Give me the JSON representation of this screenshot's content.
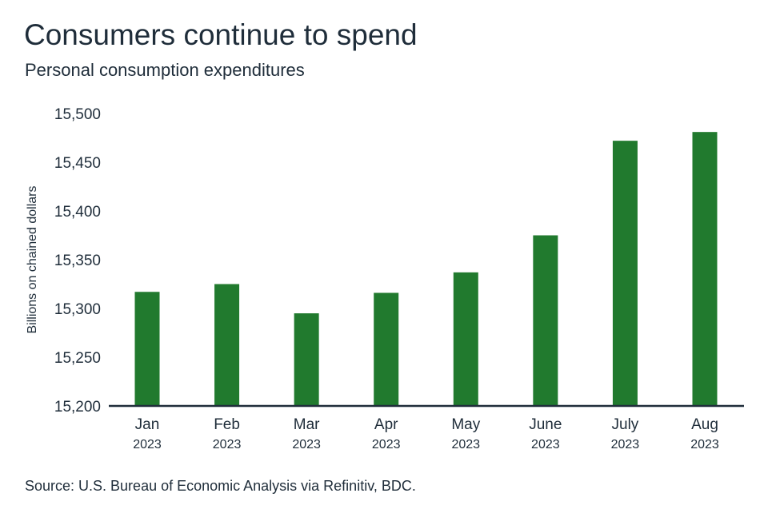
{
  "header": {
    "title": "Consumers continue to spend",
    "subtitle": "Personal consumption expenditures"
  },
  "footer": {
    "source": "Source: U.S. Bureau of Economic Analysis via Refinitiv, BDC."
  },
  "colors": {
    "bar": "#217a2e",
    "axis": "#1f2d3a",
    "text": "#1f2d3a"
  },
  "chart_data": {
    "type": "bar",
    "title": "Consumers continue to spend",
    "subtitle": "Personal consumption expenditures",
    "categories": [
      "Jan",
      "Feb",
      "Mar",
      "Apr",
      "May",
      "June",
      "July",
      "Aug"
    ],
    "category_sublabels": [
      "2023",
      "2023",
      "2023",
      "2023",
      "2023",
      "2023",
      "2023",
      "2023"
    ],
    "values": [
      15317,
      15325,
      15295,
      15316,
      15337,
      15375,
      15472,
      15481
    ],
    "xlabel": "",
    "ylabel": "Billions on chained dollars",
    "ylim": [
      15200,
      15500
    ],
    "yticks": [
      15200,
      15250,
      15300,
      15350,
      15400,
      15450,
      15500
    ],
    "ytick_labels": [
      "15,200",
      "15,250",
      "15,300",
      "15,350",
      "15,400",
      "15,450",
      "15,500"
    ],
    "grid": false,
    "legend": "none"
  }
}
